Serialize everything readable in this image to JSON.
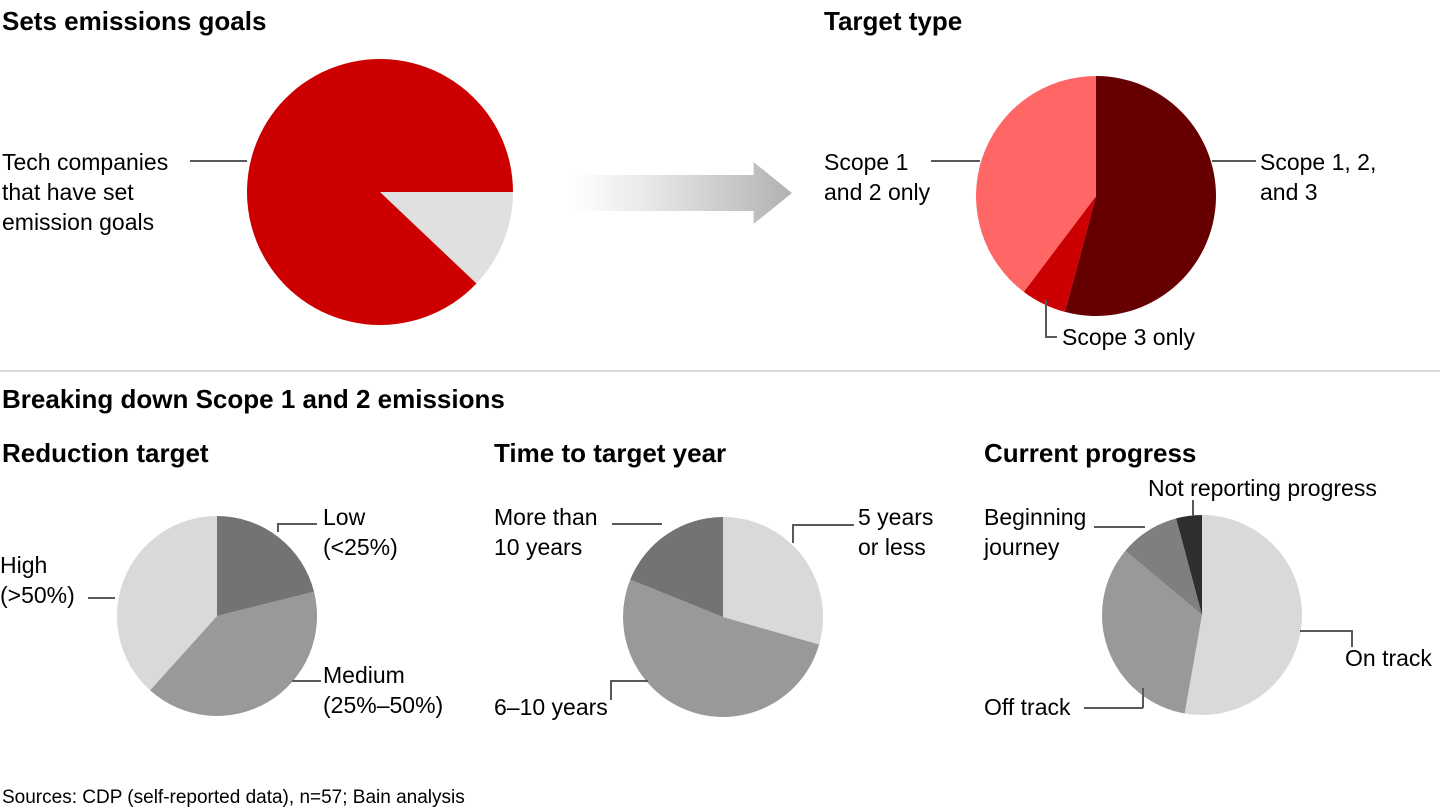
{
  "ui": {
    "titles": {
      "goals": "Sets emissions goals",
      "target": "Target type",
      "breakdown": "Breaking down Scope 1 and 2 emissions",
      "reduction": "Reduction target",
      "time": "Time to target year",
      "progress": "Current progress"
    },
    "callouts": {
      "tech": [
        "Tech companies",
        "that have set",
        "emission goals"
      ],
      "scope12": [
        "Scope 1",
        "and 2 only"
      ],
      "scope123": [
        "Scope 1, 2,",
        "and 3"
      ],
      "scope3": [
        "Scope 3 only"
      ],
      "low": [
        "Low",
        "(<25%)"
      ],
      "high": [
        "High",
        "(>50%)"
      ],
      "medium": [
        "Medium",
        "(25%–50%)"
      ],
      "more10": [
        "More than",
        "10 years"
      ],
      "y5": [
        "5 years",
        "or less"
      ],
      "y610": [
        "6–10 years"
      ],
      "notrep": [
        "Not reporting progress"
      ],
      "begin": [
        "Beginning",
        "journey"
      ],
      "ontrack": [
        "On track"
      ],
      "offtrack": [
        "Off track"
      ]
    },
    "sources": "Sources: CDP (self-reported data), n=57; Bain analysis"
  },
  "colors": {
    "bain_red": "#cc0000",
    "dark_red": "#660000",
    "salmon": "#ff6666",
    "light_gray": "#d9d9d9",
    "lighter_gray": "#e0e0e0",
    "mid_gray": "#999999",
    "dark_gray": "#737373",
    "darker_gray": "#7f7f7f",
    "near_black": "#2e2e2e",
    "leader_line": "#595959",
    "divider": "#d9d9d9"
  },
  "chart_data": [
    {
      "id": "goals",
      "type": "pie",
      "title": "Sets emissions goals",
      "slices": [
        {
          "name": "no-goals",
          "label": "",
          "pct": 12,
          "color": "#e0e0e0",
          "start_deg": 90,
          "end_deg": 133.5
        },
        {
          "name": "set-goals",
          "label": "Tech companies that have set emission goals",
          "pct": 88,
          "color": "#cc0000",
          "start_deg": 133.5,
          "end_deg": 450
        }
      ]
    },
    {
      "id": "target",
      "type": "pie",
      "title": "Target type",
      "slices": [
        {
          "name": "scope-1-2-3",
          "label": "Scope 1, 2, and 3",
          "pct": 54,
          "color": "#660000",
          "start_deg": 0,
          "end_deg": 195
        },
        {
          "name": "scope-3-only",
          "label": "Scope 3 only",
          "pct": 6,
          "color": "#cc0000",
          "start_deg": 195,
          "end_deg": 217
        },
        {
          "name": "scope-1-2-only",
          "label": "Scope 1 and 2 only",
          "pct": 40,
          "color": "#ff6666",
          "start_deg": 217,
          "end_deg": 360
        }
      ]
    },
    {
      "id": "reduction",
      "type": "pie",
      "title": "Reduction target",
      "slices": [
        {
          "name": "low",
          "label": "Low (<25%)",
          "pct": 21,
          "color": "#737373",
          "start_deg": 0,
          "end_deg": 76
        },
        {
          "name": "medium",
          "label": "Medium (25%–50%)",
          "pct": 41,
          "color": "#999999",
          "start_deg": 76,
          "end_deg": 222
        },
        {
          "name": "high",
          "label": "High (>50%)",
          "pct": 38,
          "color": "#d9d9d9",
          "start_deg": 222,
          "end_deg": 360
        }
      ]
    },
    {
      "id": "time",
      "type": "pie",
      "title": "Time to target year",
      "slices": [
        {
          "name": "5-years-or-less",
          "label": "5 years or less",
          "pct": 29,
          "color": "#d9d9d9",
          "start_deg": 0,
          "end_deg": 106
        },
        {
          "name": "6-10-years",
          "label": "6–10 years",
          "pct": 52,
          "color": "#999999",
          "start_deg": 106,
          "end_deg": 292
        },
        {
          "name": "more-than-10-years",
          "label": "More than 10 years",
          "pct": 19,
          "color": "#737373",
          "start_deg": 292,
          "end_deg": 360
        }
      ]
    },
    {
      "id": "progress",
      "type": "pie",
      "title": "Current progress",
      "slices": [
        {
          "name": "on-track",
          "label": "On track",
          "pct": 53,
          "color": "#d9d9d9",
          "start_deg": 0,
          "end_deg": 190
        },
        {
          "name": "off-track",
          "label": "Off track",
          "pct": 33,
          "color": "#999999",
          "start_deg": 190,
          "end_deg": 310
        },
        {
          "name": "beginning-journey",
          "label": "Beginning journey",
          "pct": 10,
          "color": "#7f7f7f",
          "start_deg": 310,
          "end_deg": 345
        },
        {
          "name": "not-reporting-progress",
          "label": "Not reporting progress",
          "pct": 4,
          "color": "#2e2e2e",
          "start_deg": 345,
          "end_deg": 360
        }
      ]
    }
  ]
}
